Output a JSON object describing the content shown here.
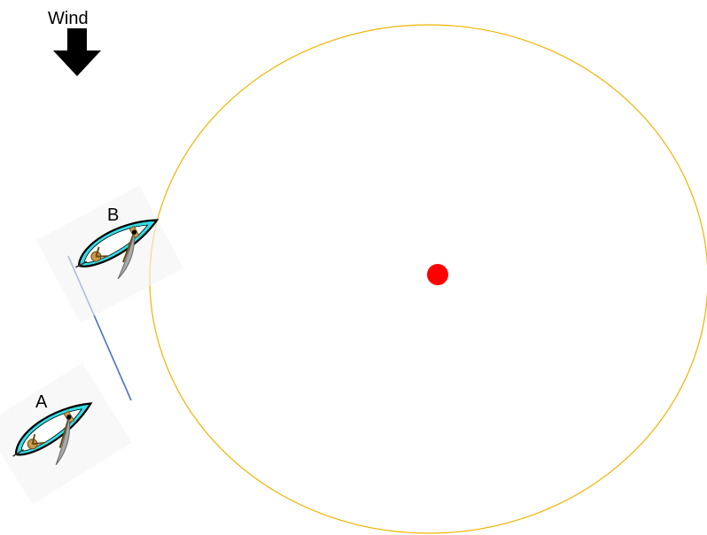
{
  "wind": {
    "label": "Wind",
    "icon": "arrow-down-icon",
    "color": "#000000"
  },
  "zone": {
    "circle_color": "#f0b400",
    "mark_color": "#ff0000"
  },
  "boats": [
    {
      "label": "A",
      "hull_color": "#33dde8",
      "sail_color": "#a8a8a8"
    },
    {
      "label": "B",
      "hull_color": "#33dde8",
      "sail_color": "#a8a8a8"
    }
  ],
  "overlap_line_color": "#4a72c4"
}
